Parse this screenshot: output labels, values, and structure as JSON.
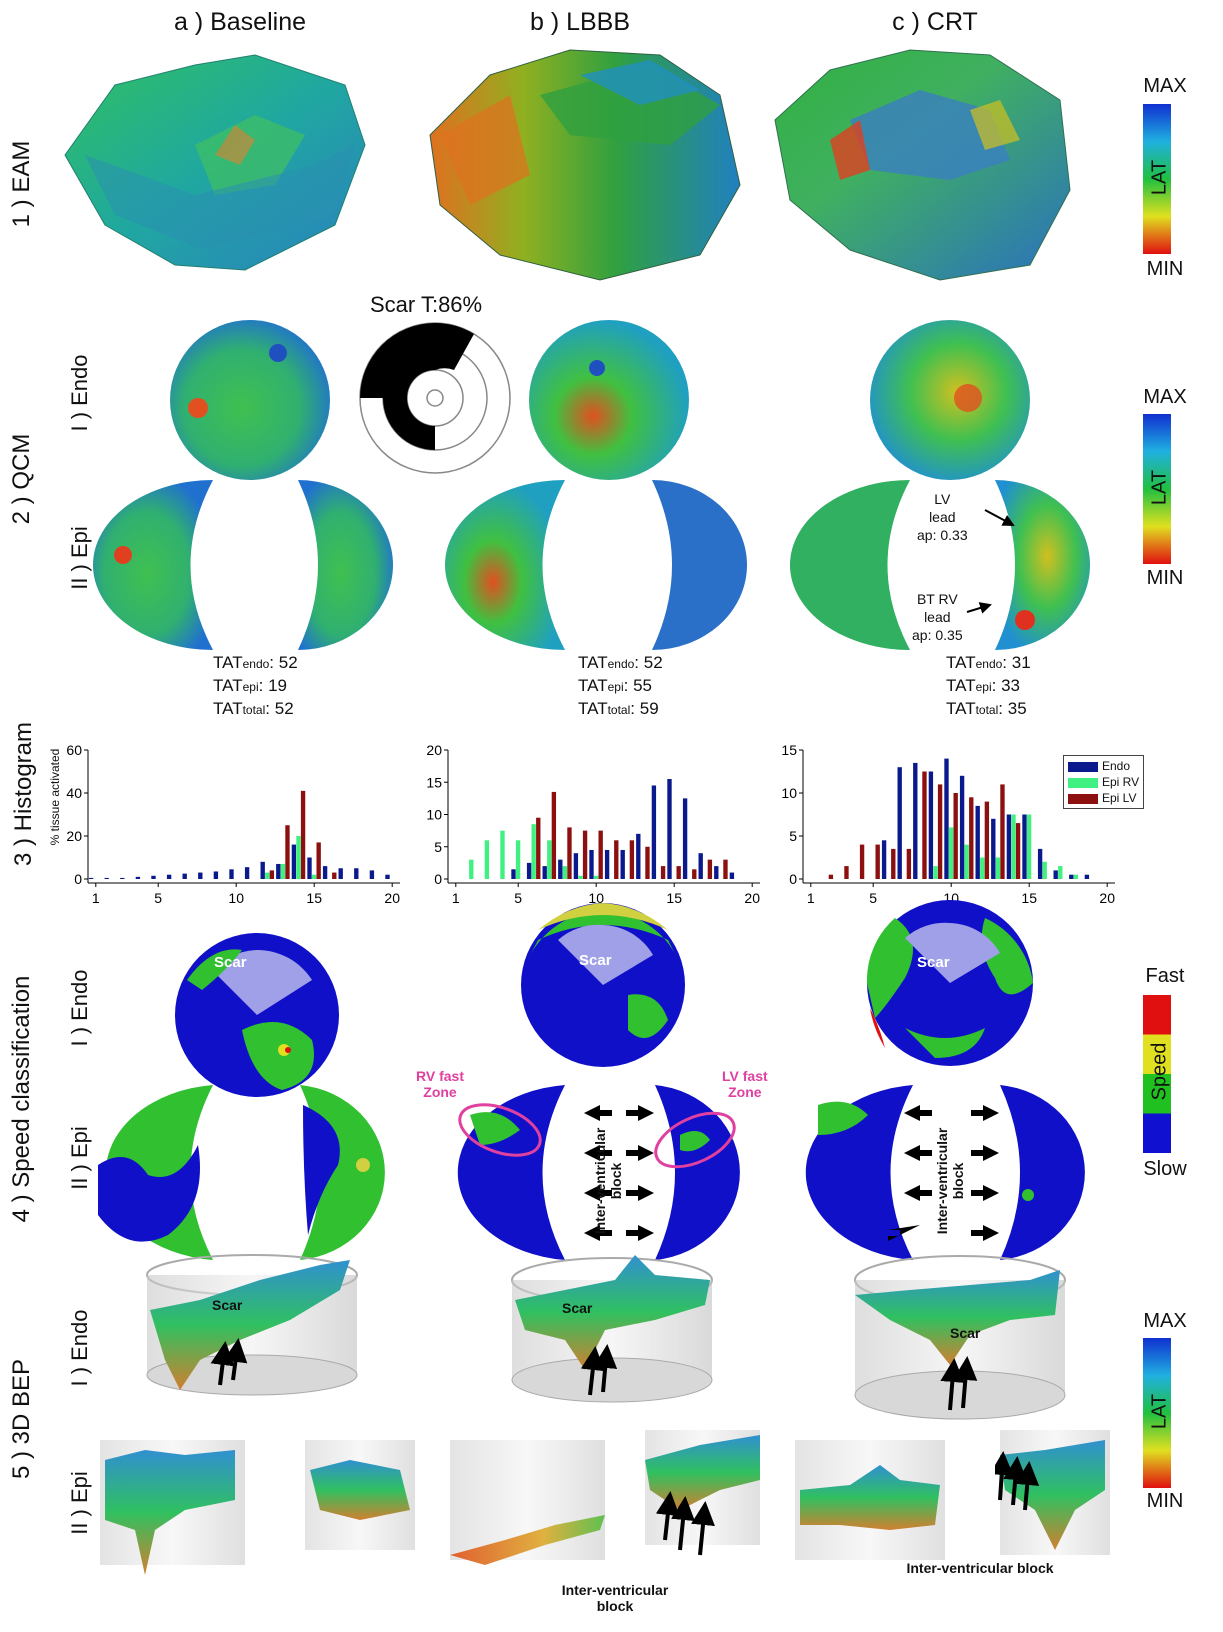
{
  "columns": [
    "a ) Baseline",
    "b ) LBBB",
    "c ) CRT"
  ],
  "rows": {
    "eam": "1 ) EAM",
    "qcm": "2 ) QCM",
    "histogram": "3 ) Histogram",
    "speed": "4 ) Speed classification",
    "bep": "5 ) 3D BEP"
  },
  "sub": {
    "endo": "I ) Endo",
    "epi": "II ) Epi"
  },
  "colorbar_lat": {
    "max": "MAX",
    "min": "MIN",
    "label": "LAT"
  },
  "colorbar_speed": {
    "max": "Fast",
    "min": "Slow",
    "label": "Speed",
    "colors": [
      "#e01010",
      "#e0e020",
      "#20c020",
      "#1010d0"
    ]
  },
  "scar_title": "Scar T:86%",
  "tat": [
    {
      "endo": "52",
      "epi": "19",
      "total": "52"
    },
    {
      "endo": "52",
      "epi": "55",
      "total": "59"
    },
    {
      "endo": "31",
      "epi": "33",
      "total": "35"
    }
  ],
  "tat_labels": {
    "base": "TAT",
    "endo": "endo",
    "epi": "epi",
    "total": "total"
  },
  "annotations": {
    "lv_lead": "LV\nlead\nap: 0.33",
    "rv_lead": "BT RV\nlead\nap: 0.35",
    "rv_fast": "RV fast\nZone",
    "lv_fast": "LV fast\nZone",
    "ivb": "Inter-ventricular\nblock",
    "ivb_short": "Inter-ventricular block",
    "scar": "Scar"
  },
  "histogram_ylabel": "% tissue activated",
  "legend": [
    "Endo",
    "Epi RV",
    "Epi LV"
  ],
  "colors": {
    "endo": "#0a1a8c",
    "epirv": "#40f080",
    "epilv": "#8c1010"
  },
  "chart_data": [
    {
      "type": "bar",
      "x": [
        1,
        2,
        3,
        4,
        5,
        6,
        7,
        8,
        9,
        10,
        11,
        12,
        13,
        14,
        15,
        16,
        17,
        18,
        19,
        20
      ],
      "ylim": [
        0,
        60
      ],
      "yticks": [
        0,
        20,
        40,
        60
      ],
      "xticks": [
        1,
        5,
        10,
        15,
        20
      ],
      "series": [
        {
          "name": "Endo",
          "values": [
            0.5,
            0.5,
            0.5,
            1,
            1.5,
            2,
            2.5,
            3,
            3.5,
            4.5,
            5.5,
            8,
            7,
            16,
            10,
            6,
            5,
            5,
            4,
            2
          ]
        },
        {
          "name": "Epi RV",
          "values": [
            0,
            0,
            0,
            0,
            0,
            0,
            0,
            0,
            0,
            0,
            0,
            3,
            7,
            20,
            2,
            0,
            0,
            0,
            0,
            0
          ]
        },
        {
          "name": "Epi LV",
          "values": [
            0,
            0,
            0,
            0,
            0,
            0,
            0,
            0,
            0,
            0,
            0,
            4,
            25,
            41,
            17,
            3,
            0,
            0,
            0,
            0
          ]
        }
      ]
    },
    {
      "type": "bar",
      "x": [
        1,
        2,
        3,
        4,
        5,
        6,
        7,
        8,
        9,
        10,
        11,
        12,
        13,
        14,
        15,
        16,
        17,
        18,
        19,
        20
      ],
      "ylim": [
        0,
        20
      ],
      "yticks": [
        0,
        5,
        10,
        15,
        20
      ],
      "xticks": [
        1,
        5,
        10,
        15,
        20
      ],
      "series": [
        {
          "name": "Endo",
          "values": [
            0,
            0,
            0,
            0,
            1.5,
            2.5,
            2,
            3,
            4,
            4.5,
            4.5,
            4.5,
            7,
            14.5,
            15.5,
            12.5,
            4,
            2,
            1,
            0
          ]
        },
        {
          "name": "Epi RV",
          "values": [
            0,
            3,
            6,
            7.5,
            6,
            8.5,
            6,
            2,
            0.5,
            0.5,
            0,
            0,
            0,
            0,
            0,
            0,
            0,
            0,
            0,
            0
          ]
        },
        {
          "name": "Epi LV",
          "values": [
            0,
            0,
            0,
            0,
            0,
            9.5,
            13.5,
            8,
            7.5,
            7.5,
            6,
            6,
            5,
            2,
            2,
            1.5,
            3,
            3,
            0,
            0
          ]
        }
      ]
    },
    {
      "type": "bar",
      "x": [
        1,
        2,
        3,
        4,
        5,
        6,
        7,
        8,
        9,
        10,
        11,
        12,
        13,
        14,
        15,
        16,
        17,
        18,
        19,
        20
      ],
      "ylim": [
        0,
        15
      ],
      "yticks": [
        0,
        5,
        10,
        15
      ],
      "xticks": [
        1,
        5,
        10,
        15,
        20
      ],
      "series": [
        {
          "name": "Endo",
          "values": [
            0,
            0,
            0,
            0,
            0,
            4.5,
            13,
            13.5,
            12.5,
            14,
            12,
            8.5,
            7,
            7.5,
            7.5,
            3.5,
            1,
            0.5,
            0.5,
            0
          ]
        },
        {
          "name": "Epi RV",
          "values": [
            0,
            0,
            0,
            0,
            0,
            0,
            0,
            0,
            1.5,
            6,
            4,
            2.5,
            2.5,
            7.5,
            7.5,
            2,
            1.5,
            0.5,
            0,
            0
          ]
        },
        {
          "name": "Epi LV",
          "values": [
            0,
            0.5,
            1.5,
            4,
            4,
            3.5,
            3.5,
            12.5,
            11,
            10,
            9.5,
            9,
            11,
            6.5,
            0,
            0,
            0,
            0,
            0,
            0
          ]
        }
      ]
    }
  ]
}
